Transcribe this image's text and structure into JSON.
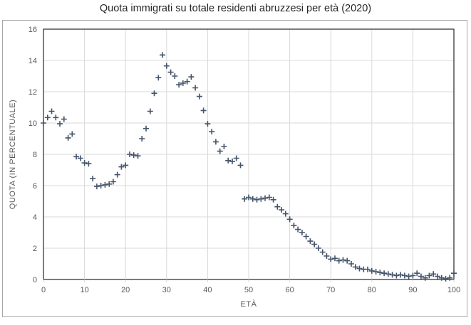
{
  "chart_title": "Quota immigrati su totale residenti abruzzesi per età (2020)",
  "colors": {
    "marker": "#44546A",
    "gridline": "#D9D9D9",
    "axis_line": "#262626",
    "tick_label": "#595959",
    "chart_border": "#A6A6A6",
    "background": "#FFFFFF"
  },
  "chart_data": {
    "type": "scatter",
    "marker_style": "plus",
    "title": "Quota immigrati su totale residenti abruzzesi per età (2020)",
    "xlabel": "ETÀ",
    "ylabel": "QUOTA (IN PERCENTUALE)",
    "xlim": [
      0,
      100
    ],
    "ylim": [
      0,
      16
    ],
    "xticks": [
      0,
      10,
      20,
      30,
      40,
      50,
      60,
      70,
      80,
      90,
      100
    ],
    "yticks": [
      0,
      2,
      4,
      6,
      8,
      10,
      12,
      14,
      16
    ],
    "grid": true,
    "legend": false,
    "x_is_age_index": true,
    "quota_by_age": [
      10.0,
      10.35,
      10.75,
      10.35,
      9.95,
      10.25,
      9.05,
      9.3,
      7.85,
      7.75,
      7.45,
      7.4,
      6.45,
      5.95,
      6.0,
      6.05,
      6.1,
      6.25,
      6.7,
      7.2,
      7.3,
      8.0,
      7.95,
      7.9,
      9.0,
      9.65,
      10.75,
      11.9,
      12.9,
      14.35,
      13.65,
      13.25,
      13.0,
      12.45,
      12.55,
      12.65,
      12.95,
      12.25,
      11.7,
      10.8,
      9.95,
      9.45,
      8.8,
      8.2,
      8.5,
      7.6,
      7.55,
      7.75,
      7.3,
      5.15,
      5.25,
      5.15,
      5.1,
      5.15,
      5.2,
      5.25,
      5.1,
      4.65,
      4.45,
      4.2,
      3.85,
      3.45,
      3.2,
      3.0,
      2.75,
      2.45,
      2.25,
      2.0,
      1.75,
      1.5,
      1.3,
      1.35,
      1.2,
      1.25,
      1.2,
      1.0,
      0.8,
      0.7,
      0.65,
      0.65,
      0.55,
      0.5,
      0.45,
      0.4,
      0.35,
      0.3,
      0.25,
      0.3,
      0.25,
      0.2,
      0.25,
      0.4,
      0.2,
      0.1,
      0.25,
      0.35,
      0.2,
      0.1,
      0.05,
      0.1,
      0.4
    ]
  }
}
